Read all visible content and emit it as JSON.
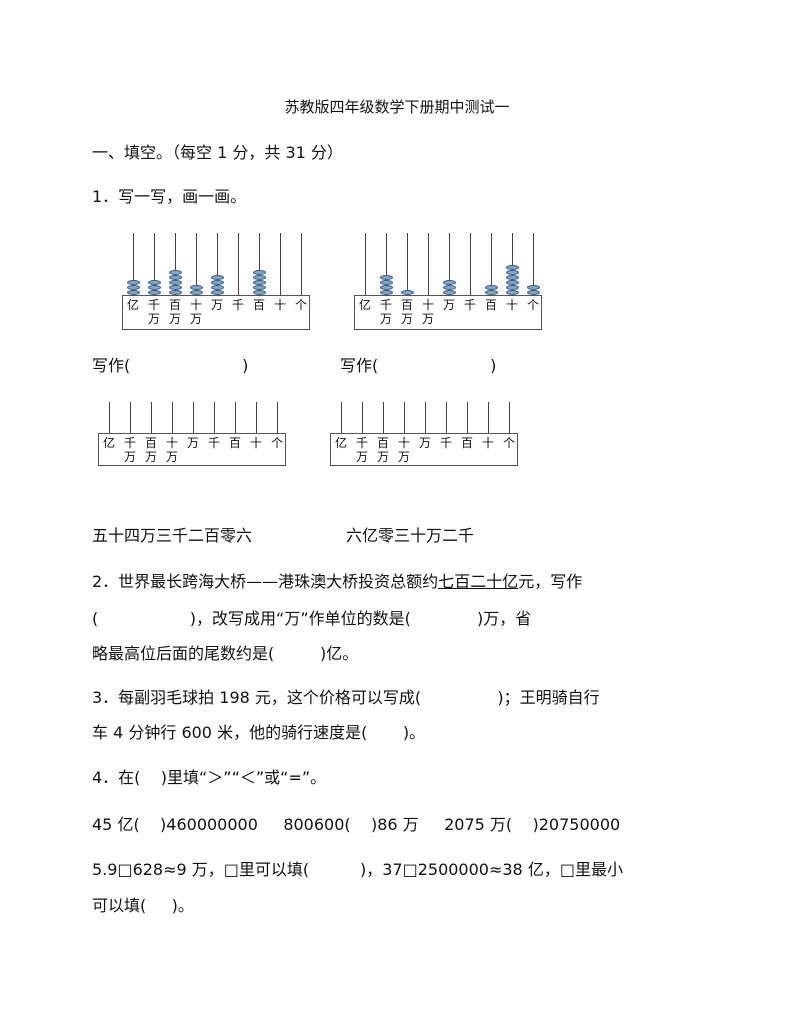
{
  "title": "苏教版四年级数学下册期中测试一",
  "section1": "一、填空。（每空 1 分，共 31 分）",
  "q1": {
    "prompt": "1．写一写，画一画。",
    "place_labels": [
      [
        "亿"
      ],
      [
        "千",
        "万"
      ],
      [
        "百",
        "万"
      ],
      [
        "十",
        "万"
      ],
      [
        "万"
      ],
      [
        "千"
      ],
      [
        "百"
      ],
      [
        "十"
      ],
      [
        "个"
      ]
    ],
    "abaci_beads": [
      [
        3,
        3,
        5,
        2,
        4,
        0,
        5,
        0,
        0
      ],
      [
        0,
        4,
        1,
        0,
        3,
        0,
        2,
        6,
        2
      ],
      [
        0,
        0,
        0,
        0,
        0,
        0,
        0,
        0,
        0
      ],
      [
        0,
        0,
        0,
        0,
        0,
        0,
        0,
        0,
        0
      ]
    ],
    "write_a": "写作(                      )",
    "write_b": "写作(                      )",
    "draw_a": "五十四万三千二百零六",
    "draw_b": "六亿零三十万二千"
  },
  "q2": {
    "line1_pre": "2．世界最长跨海大桥——港珠澳大桥投资总额约",
    "line1_u": "七百二十亿",
    "line1_post": "元，写作",
    "line2": "(                  )，改写成用“万”作单位的数是(             )万，省",
    "line3": "略最高位后面的尾数约是(         )亿。"
  },
  "q3": {
    "line1": "3．每副羽毛球拍 198 元，这个价格可以写成(               )；王明骑自行",
    "line2": "车 4 分钟行 600 米，他的骑行速度是(       )。"
  },
  "q4": {
    "line1": "4．在(    )里填“＞”“＜”或“=”。",
    "line2": "45 亿(    )460000000     800600(    )86 万     2075 万(    )20750000"
  },
  "q5": {
    "line1": "5.9□628≈9 万，□里可以填(          )，37□2500000≈38 亿，□里最小",
    "line2": "可以填(     )。"
  }
}
